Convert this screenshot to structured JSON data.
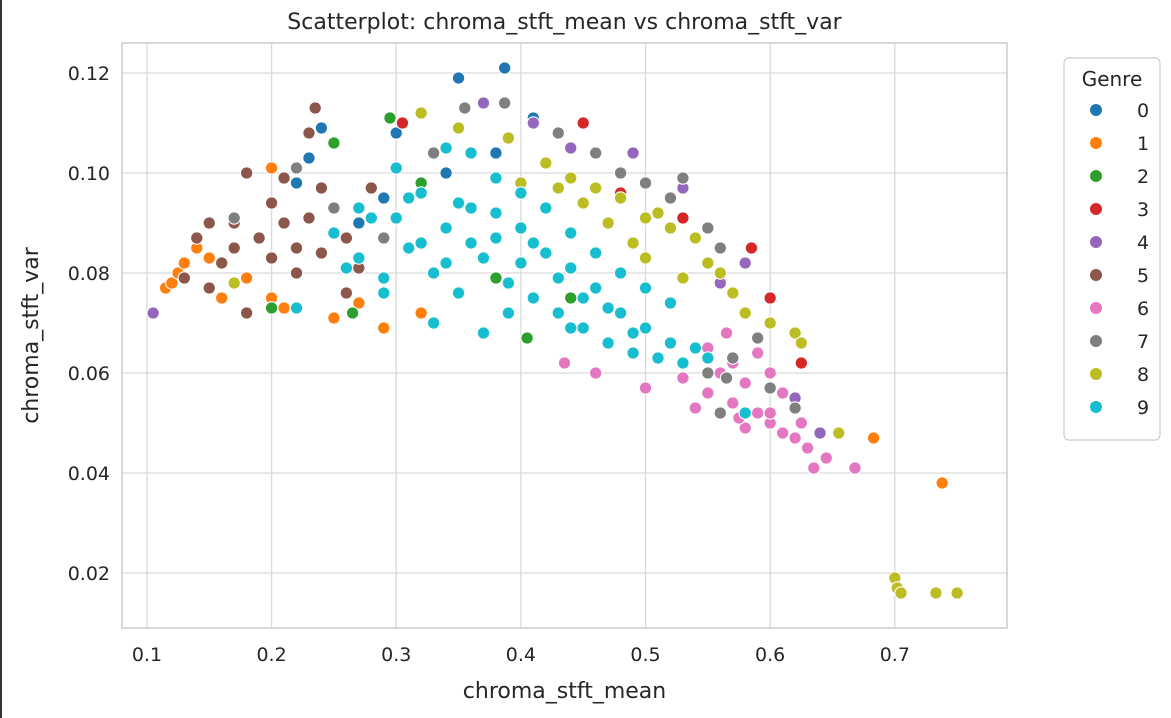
{
  "chart_data": {
    "type": "scatter",
    "title": "Scatterplot: chroma_stft_mean vs chroma_stft_var",
    "xlabel": "chroma_stft_mean",
    "ylabel": "chroma_stft_var",
    "xlim": [
      0.08,
      0.79
    ],
    "ylim": [
      0.009,
      0.126
    ],
    "xticks": [
      0.1,
      0.2,
      0.3,
      0.4,
      0.5,
      0.6,
      0.7
    ],
    "xtick_labels": [
      "0.1",
      "0.2",
      "0.3",
      "0.4",
      "0.5",
      "0.6",
      "0.7"
    ],
    "yticks": [
      0.02,
      0.04,
      0.06,
      0.08,
      0.1,
      0.12
    ],
    "ytick_labels": [
      "0.02",
      "0.04",
      "0.06",
      "0.08",
      "0.10",
      "0.12"
    ],
    "grid": true,
    "legend": {
      "title": "Genre",
      "placement": "outside-right"
    },
    "series": [
      {
        "name": "0",
        "color": "#1f77b4",
        "points": [
          [
            0.35,
            0.119
          ],
          [
            0.387,
            0.121
          ],
          [
            0.24,
            0.109
          ],
          [
            0.22,
            0.098
          ],
          [
            0.29,
            0.095
          ],
          [
            0.3,
            0.108
          ],
          [
            0.41,
            0.111
          ],
          [
            0.23,
            0.103
          ],
          [
            0.34,
            0.1
          ],
          [
            0.27,
            0.09
          ],
          [
            0.38,
            0.104
          ]
        ]
      },
      {
        "name": "1",
        "color": "#ff7f0e",
        "points": [
          [
            0.115,
            0.077
          ],
          [
            0.12,
            0.078
          ],
          [
            0.125,
            0.08
          ],
          [
            0.13,
            0.082
          ],
          [
            0.14,
            0.085
          ],
          [
            0.16,
            0.075
          ],
          [
            0.18,
            0.079
          ],
          [
            0.2,
            0.101
          ],
          [
            0.21,
            0.073
          ],
          [
            0.25,
            0.071
          ],
          [
            0.29,
            0.069
          ],
          [
            0.32,
            0.072
          ],
          [
            0.2,
            0.075
          ],
          [
            0.683,
            0.047
          ],
          [
            0.738,
            0.038
          ],
          [
            0.27,
            0.074
          ],
          [
            0.15,
            0.083
          ]
        ]
      },
      {
        "name": "2",
        "color": "#2ca02c",
        "points": [
          [
            0.2,
            0.073
          ],
          [
            0.265,
            0.072
          ],
          [
            0.295,
            0.111
          ],
          [
            0.25,
            0.106
          ],
          [
            0.405,
            0.067
          ],
          [
            0.44,
            0.075
          ],
          [
            0.38,
            0.079
          ],
          [
            0.32,
            0.098
          ]
        ]
      },
      {
        "name": "3",
        "color": "#d62728",
        "points": [
          [
            0.305,
            0.11
          ],
          [
            0.45,
            0.11
          ],
          [
            0.53,
            0.091
          ],
          [
            0.585,
            0.085
          ],
          [
            0.625,
            0.062
          ],
          [
            0.6,
            0.075
          ],
          [
            0.48,
            0.096
          ],
          [
            0.36,
            0.104
          ]
        ]
      },
      {
        "name": "4",
        "color": "#9467bd",
        "points": [
          [
            0.105,
            0.072
          ],
          [
            0.37,
            0.114
          ],
          [
            0.41,
            0.11
          ],
          [
            0.49,
            0.104
          ],
          [
            0.53,
            0.097
          ],
          [
            0.58,
            0.082
          ],
          [
            0.6,
            0.07
          ],
          [
            0.64,
            0.048
          ],
          [
            0.44,
            0.105
          ],
          [
            0.56,
            0.078
          ],
          [
            0.62,
            0.055
          ]
        ]
      },
      {
        "name": "5",
        "color": "#8c564b",
        "points": [
          [
            0.14,
            0.087
          ],
          [
            0.15,
            0.09
          ],
          [
            0.16,
            0.082
          ],
          [
            0.17,
            0.09
          ],
          [
            0.18,
            0.1
          ],
          [
            0.18,
            0.072
          ],
          [
            0.2,
            0.094
          ],
          [
            0.21,
            0.09
          ],
          [
            0.22,
            0.085
          ],
          [
            0.23,
            0.108
          ],
          [
            0.235,
            0.113
          ],
          [
            0.24,
            0.097
          ],
          [
            0.25,
            0.093
          ],
          [
            0.26,
            0.087
          ],
          [
            0.27,
            0.081
          ],
          [
            0.15,
            0.077
          ],
          [
            0.13,
            0.079
          ],
          [
            0.19,
            0.087
          ],
          [
            0.2,
            0.083
          ],
          [
            0.23,
            0.091
          ],
          [
            0.26,
            0.076
          ],
          [
            0.28,
            0.097
          ],
          [
            0.17,
            0.085
          ],
          [
            0.21,
            0.099
          ],
          [
            0.22,
            0.08
          ],
          [
            0.24,
            0.084
          ]
        ]
      },
      {
        "name": "6",
        "color": "#e377c2",
        "points": [
          [
            0.435,
            0.062
          ],
          [
            0.46,
            0.06
          ],
          [
            0.5,
            0.057
          ],
          [
            0.53,
            0.059
          ],
          [
            0.55,
            0.056
          ],
          [
            0.56,
            0.06
          ],
          [
            0.57,
            0.054
          ],
          [
            0.58,
            0.058
          ],
          [
            0.59,
            0.052
          ],
          [
            0.6,
            0.05
          ],
          [
            0.61,
            0.048
          ],
          [
            0.62,
            0.047
          ],
          [
            0.63,
            0.045
          ],
          [
            0.635,
            0.041
          ],
          [
            0.645,
            0.043
          ],
          [
            0.668,
            0.041
          ],
          [
            0.57,
            0.062
          ],
          [
            0.59,
            0.064
          ],
          [
            0.61,
            0.056
          ],
          [
            0.55,
            0.065
          ],
          [
            0.54,
            0.053
          ],
          [
            0.6,
            0.052
          ],
          [
            0.58,
            0.049
          ],
          [
            0.625,
            0.05
          ],
          [
            0.6,
            0.06
          ],
          [
            0.565,
            0.068
          ],
          [
            0.575,
            0.051
          ]
        ]
      },
      {
        "name": "7",
        "color": "#7f7f7f",
        "points": [
          [
            0.17,
            0.091
          ],
          [
            0.22,
            0.101
          ],
          [
            0.25,
            0.093
          ],
          [
            0.355,
            0.113
          ],
          [
            0.387,
            0.114
          ],
          [
            0.43,
            0.108
          ],
          [
            0.46,
            0.104
          ],
          [
            0.5,
            0.098
          ],
          [
            0.52,
            0.095
          ],
          [
            0.53,
            0.099
          ],
          [
            0.55,
            0.089
          ],
          [
            0.56,
            0.085
          ],
          [
            0.55,
            0.06
          ],
          [
            0.57,
            0.063
          ],
          [
            0.59,
            0.067
          ],
          [
            0.6,
            0.057
          ],
          [
            0.62,
            0.053
          ],
          [
            0.29,
            0.087
          ],
          [
            0.33,
            0.104
          ],
          [
            0.48,
            0.1
          ],
          [
            0.565,
            0.059
          ],
          [
            0.56,
            0.052
          ]
        ]
      },
      {
        "name": "8",
        "color": "#bcbd22",
        "points": [
          [
            0.17,
            0.078
          ],
          [
            0.32,
            0.112
          ],
          [
            0.35,
            0.109
          ],
          [
            0.39,
            0.107
          ],
          [
            0.42,
            0.102
          ],
          [
            0.44,
            0.099
          ],
          [
            0.46,
            0.097
          ],
          [
            0.48,
            0.095
          ],
          [
            0.5,
            0.091
          ],
          [
            0.52,
            0.089
          ],
          [
            0.54,
            0.087
          ],
          [
            0.56,
            0.08
          ],
          [
            0.57,
            0.076
          ],
          [
            0.58,
            0.072
          ],
          [
            0.6,
            0.07
          ],
          [
            0.62,
            0.068
          ],
          [
            0.625,
            0.066
          ],
          [
            0.655,
            0.048
          ],
          [
            0.7,
            0.019
          ],
          [
            0.702,
            0.017
          ],
          [
            0.705,
            0.016
          ],
          [
            0.733,
            0.016
          ],
          [
            0.75,
            0.016
          ],
          [
            0.5,
            0.083
          ],
          [
            0.53,
            0.079
          ],
          [
            0.55,
            0.082
          ],
          [
            0.51,
            0.092
          ],
          [
            0.49,
            0.086
          ],
          [
            0.47,
            0.09
          ],
          [
            0.45,
            0.094
          ],
          [
            0.43,
            0.097
          ],
          [
            0.4,
            0.098
          ]
        ]
      },
      {
        "name": "9",
        "color": "#17becf",
        "points": [
          [
            0.22,
            0.073
          ],
          [
            0.25,
            0.088
          ],
          [
            0.27,
            0.083
          ],
          [
            0.29,
            0.079
          ],
          [
            0.3,
            0.091
          ],
          [
            0.31,
            0.085
          ],
          [
            0.32,
            0.096
          ],
          [
            0.33,
            0.08
          ],
          [
            0.34,
            0.089
          ],
          [
            0.35,
            0.094
          ],
          [
            0.36,
            0.086
          ],
          [
            0.37,
            0.083
          ],
          [
            0.38,
            0.092
          ],
          [
            0.39,
            0.078
          ],
          [
            0.4,
            0.089
          ],
          [
            0.41,
            0.075
          ],
          [
            0.42,
            0.084
          ],
          [
            0.43,
            0.072
          ],
          [
            0.44,
            0.081
          ],
          [
            0.45,
            0.069
          ],
          [
            0.46,
            0.077
          ],
          [
            0.47,
            0.066
          ],
          [
            0.48,
            0.072
          ],
          [
            0.49,
            0.064
          ],
          [
            0.5,
            0.069
          ],
          [
            0.51,
            0.063
          ],
          [
            0.52,
            0.066
          ],
          [
            0.53,
            0.062
          ],
          [
            0.54,
            0.065
          ],
          [
            0.55,
            0.063
          ],
          [
            0.33,
            0.07
          ],
          [
            0.37,
            0.068
          ],
          [
            0.28,
            0.091
          ],
          [
            0.3,
            0.101
          ],
          [
            0.34,
            0.105
          ],
          [
            0.36,
            0.104
          ],
          [
            0.38,
            0.099
          ],
          [
            0.4,
            0.096
          ],
          [
            0.42,
            0.093
          ],
          [
            0.44,
            0.088
          ],
          [
            0.46,
            0.084
          ],
          [
            0.48,
            0.08
          ],
          [
            0.5,
            0.077
          ],
          [
            0.31,
            0.095
          ],
          [
            0.35,
            0.076
          ],
          [
            0.39,
            0.072
          ],
          [
            0.43,
            0.079
          ],
          [
            0.47,
            0.073
          ],
          [
            0.29,
            0.076
          ],
          [
            0.26,
            0.081
          ],
          [
            0.32,
            0.086
          ],
          [
            0.36,
            0.093
          ],
          [
            0.41,
            0.086
          ],
          [
            0.45,
            0.075
          ],
          [
            0.58,
            0.052
          ],
          [
            0.52,
            0.074
          ],
          [
            0.38,
            0.087
          ],
          [
            0.34,
            0.082
          ],
          [
            0.27,
            0.093
          ],
          [
            0.4,
            0.082
          ],
          [
            0.44,
            0.069
          ],
          [
            0.49,
            0.068
          ]
        ]
      }
    ]
  }
}
